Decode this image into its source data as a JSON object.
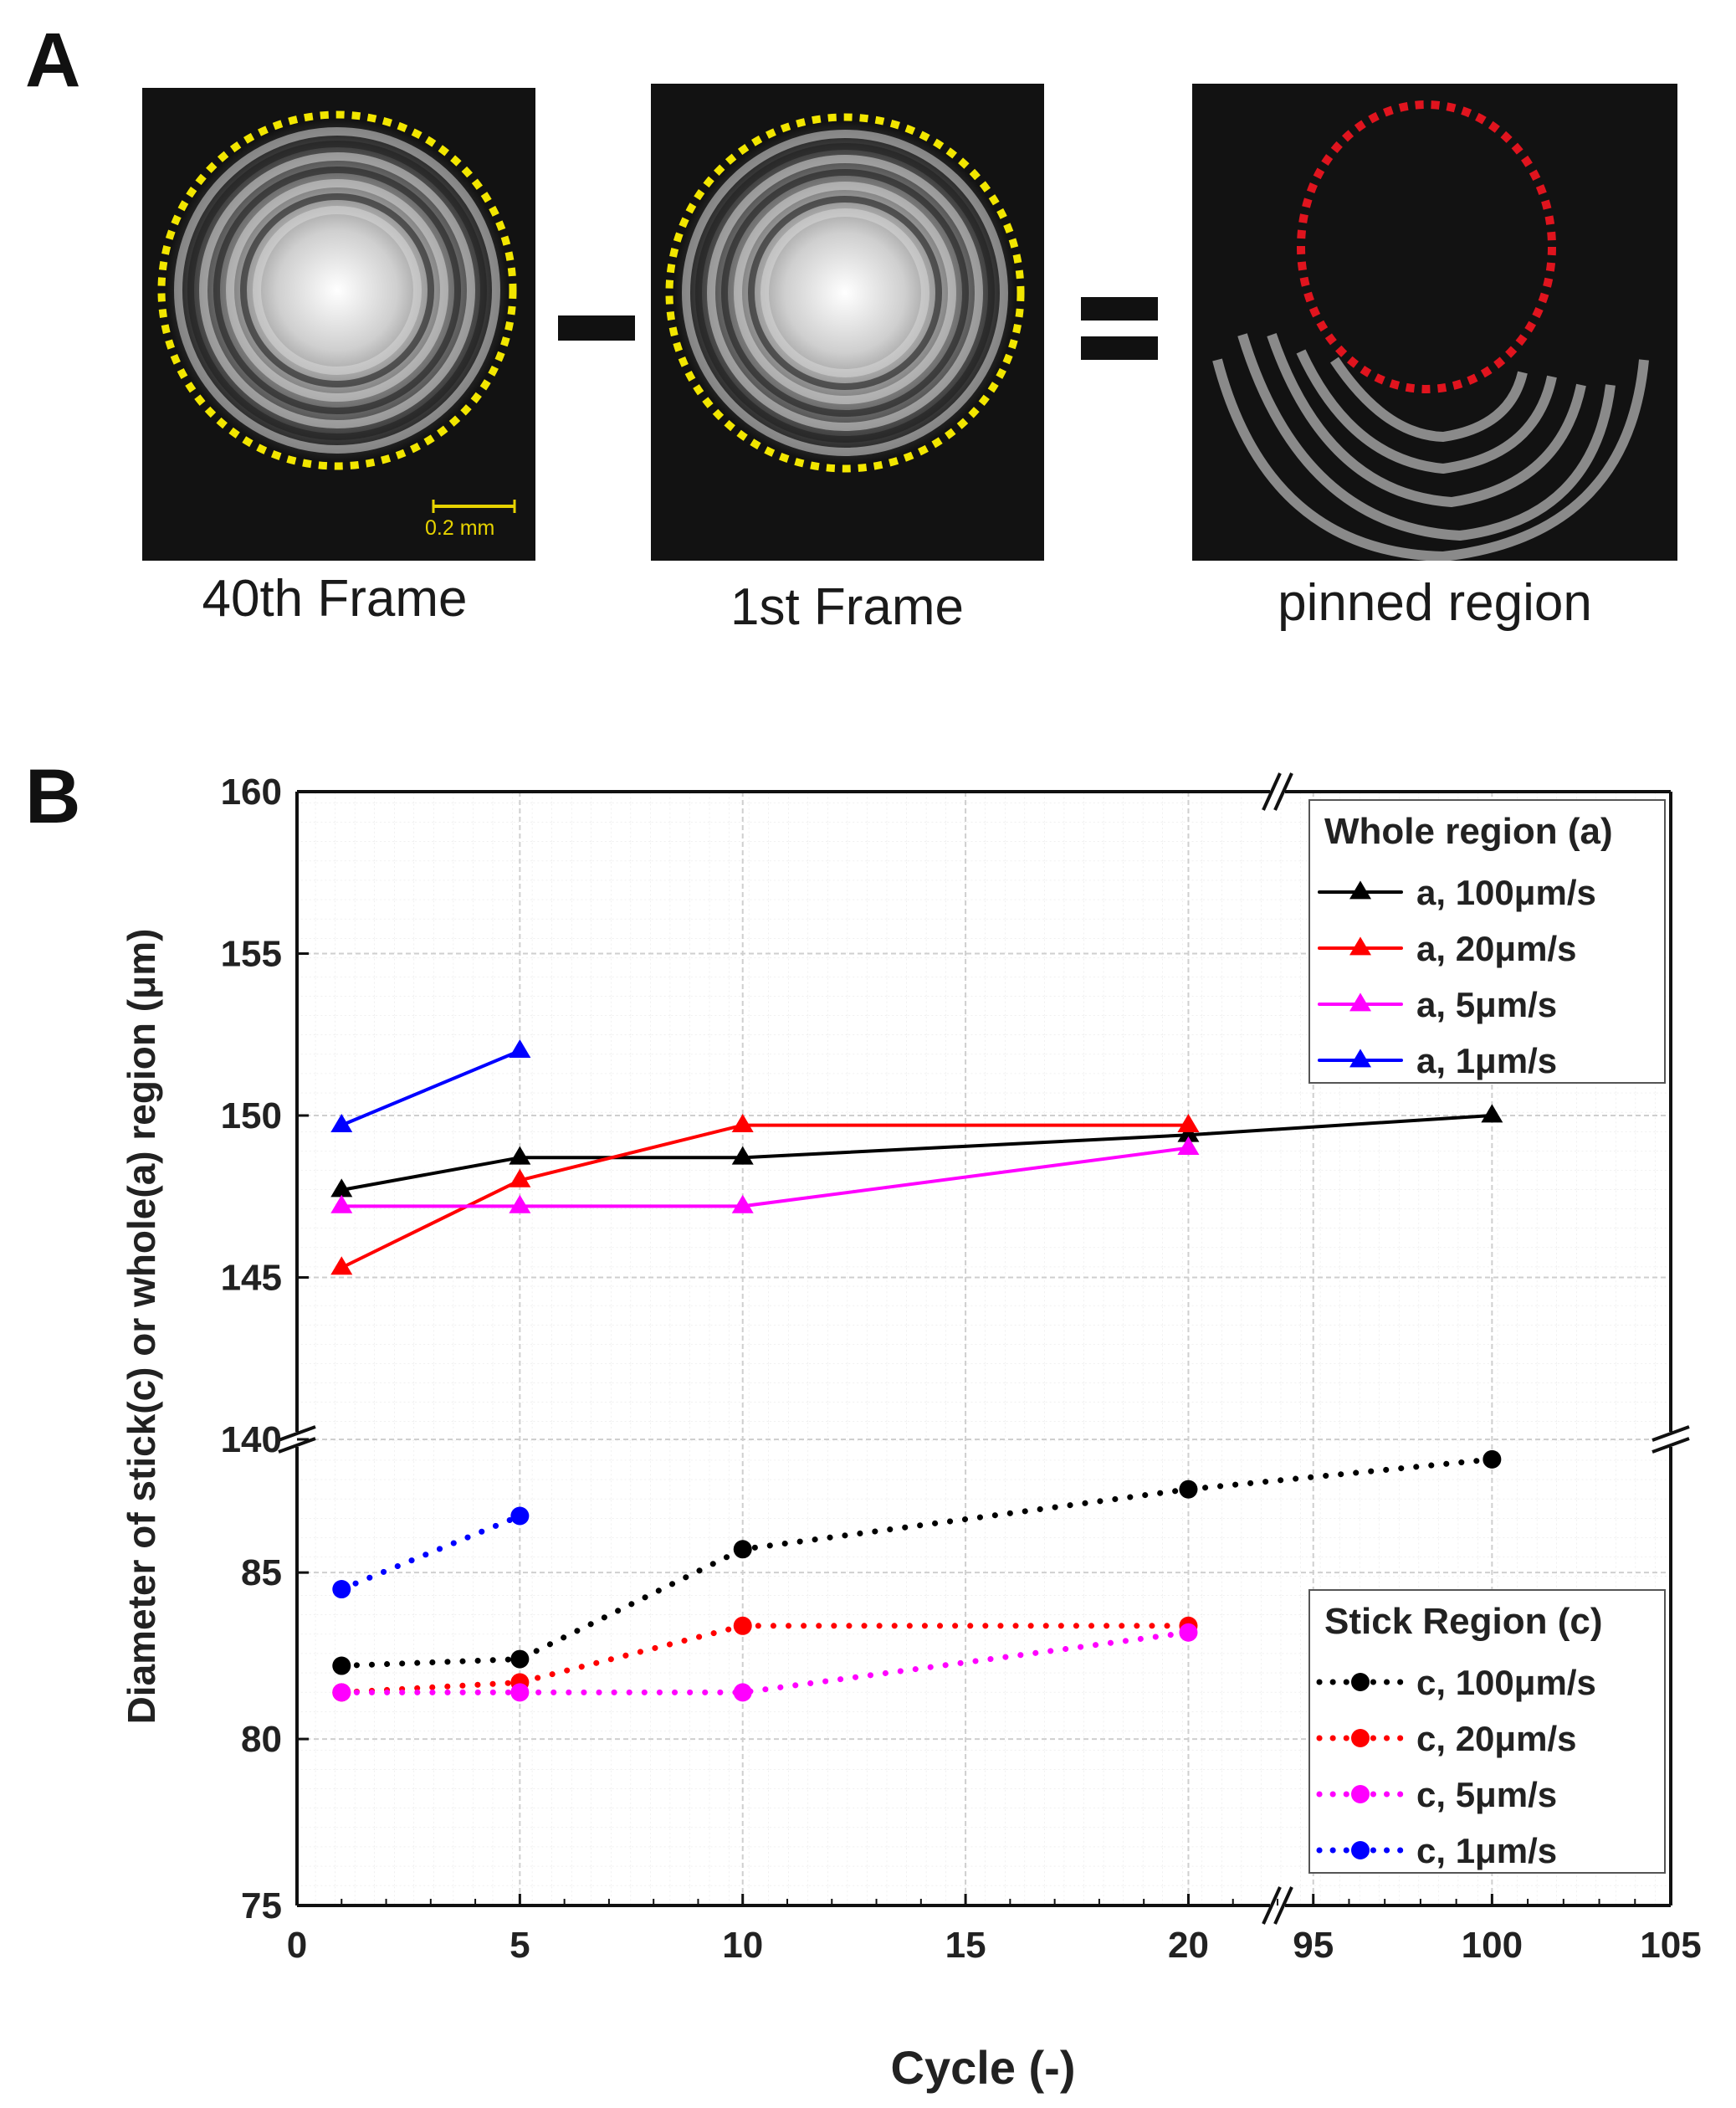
{
  "panel_a": {
    "label": "A",
    "frames": [
      {
        "caption": "40th Frame",
        "scale_bar": "0.2 mm"
      },
      {
        "caption": "1st Frame"
      },
      {
        "caption": "pinned region"
      }
    ],
    "colors": {
      "whole_outline": "#f2e600",
      "pinned_outline": "#e0141e"
    }
  },
  "panel_b": {
    "label": "B"
  },
  "chart_data": {
    "type": "line",
    "title": "",
    "xlabel": "Cycle (-)",
    "ylabel": "Diameter of stick(c) or whole(a) region (μm)",
    "grid": true,
    "x_axis": {
      "segments": [
        [
          0,
          22
        ],
        [
          94,
          105
        ]
      ],
      "ticks": [
        0,
        5,
        10,
        15,
        20,
        95,
        100,
        105
      ],
      "break_marks": true
    },
    "y_axis": {
      "segments": [
        [
          75,
          89
        ],
        [
          140,
          160
        ]
      ],
      "ticks": [
        75,
        80,
        85,
        140,
        145,
        150,
        155,
        160
      ],
      "break_marks": true
    },
    "legends": [
      {
        "title": "Whole region (a)",
        "placement": "top-right",
        "entries": [
          "a, 100μm/s",
          "a, 20μm/s",
          "a, 5μm/s",
          "a, 1μm/s"
        ]
      },
      {
        "title": "Stick Region (c)",
        "placement": "bottom-right",
        "entries": [
          "c, 100μm/s",
          "c, 20μm/s",
          "c, 5μm/s",
          "c, 1μm/s"
        ]
      }
    ],
    "series": [
      {
        "name": "a, 100μm/s",
        "group": "a",
        "color": "#000000",
        "marker": "triangle",
        "style": "solid",
        "x": [
          1,
          5,
          10,
          20,
          100
        ],
        "y": [
          147.7,
          148.7,
          148.7,
          149.4,
          150.0
        ]
      },
      {
        "name": "a, 20μm/s",
        "group": "a",
        "color": "#ff0000",
        "marker": "triangle",
        "style": "solid",
        "x": [
          1,
          5,
          10,
          20
        ],
        "y": [
          145.3,
          148.0,
          149.7,
          149.7
        ]
      },
      {
        "name": "a, 5μm/s",
        "group": "a",
        "color": "#ff00ff",
        "marker": "triangle",
        "style": "solid",
        "x": [
          1,
          5,
          10,
          20
        ],
        "y": [
          147.2,
          147.2,
          147.2,
          149.0
        ]
      },
      {
        "name": "a, 1μm/s",
        "group": "a",
        "color": "#0000ff",
        "marker": "triangle",
        "style": "solid",
        "x": [
          1,
          5
        ],
        "y": [
          149.7,
          152.0
        ]
      },
      {
        "name": "c, 100μm/s",
        "group": "c",
        "color": "#000000",
        "marker": "circle",
        "style": "dotted",
        "x": [
          1,
          5,
          10,
          20,
          100
        ],
        "y": [
          82.2,
          82.4,
          85.7,
          87.5,
          88.4
        ]
      },
      {
        "name": "c, 20μm/s",
        "group": "c",
        "color": "#ff0000",
        "marker": "circle",
        "style": "dotted",
        "x": [
          1,
          5,
          10,
          20
        ],
        "y": [
          81.4,
          81.7,
          83.4,
          83.4
        ]
      },
      {
        "name": "c, 5μm/s",
        "group": "c",
        "color": "#ff00ff",
        "marker": "circle",
        "style": "dotted",
        "x": [
          1,
          5,
          10,
          20
        ],
        "y": [
          81.4,
          81.4,
          81.4,
          83.2
        ]
      },
      {
        "name": "c, 1μm/s",
        "group": "c",
        "color": "#0000ff",
        "marker": "circle",
        "style": "dotted",
        "x": [
          1,
          5
        ],
        "y": [
          84.5,
          86.7
        ]
      }
    ]
  }
}
